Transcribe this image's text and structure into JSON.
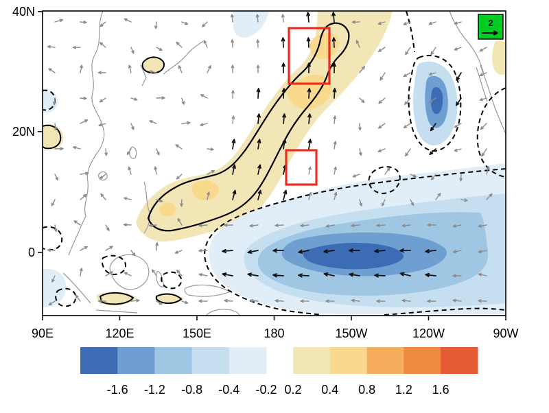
{
  "figure": {
    "y_tick_labels": [
      "40N",
      "20N",
      "0"
    ],
    "x_tick_labels": [
      "90E",
      "120E",
      "150E",
      "180",
      "150W",
      "120W",
      "90W"
    ],
    "reference_vector": {
      "label": "2",
      "box_color": "#00cc22"
    },
    "red_box_color": "#ee2b20"
  },
  "colorbar": {
    "negative_labels": [
      "-1.6",
      "-1.2",
      "-0.8",
      "-0.4",
      "-0.2"
    ],
    "positive_labels": [
      "0.2",
      "0.4",
      "0.8",
      "1.2",
      "1.6"
    ],
    "negative_colors": [
      "#3c6cb4",
      "#6f9fd1",
      "#9fc6e3",
      "#c6dff0",
      "#e1eef8"
    ],
    "positive_colors": [
      "#f3e6b6",
      "#f8d98e",
      "#f4ae5e",
      "#ee8a3f",
      "#e25b33"
    ]
  },
  "chart_data": {
    "type": "heatmap",
    "title": "",
    "x_ticks": [
      "90E",
      "120E",
      "150E",
      "180",
      "150W",
      "120W",
      "90W"
    ],
    "y_ticks": [
      "40N",
      "20N",
      "0"
    ],
    "x_range": "90E eastward across the Pacific to 90W",
    "y_range": "about 12S to 40N",
    "shading_levels": [
      -1.6,
      -1.2,
      -0.8,
      -0.4,
      -0.2,
      0.2,
      0.4,
      0.8,
      1.2,
      1.6
    ],
    "features": [
      {
        "name": "equatorial-cold-tongue",
        "value_range": [
          -1.6,
          -0.2
        ],
        "location": "along the equator from ~170E to 90W, minimum (< -1.6) near 160W-140W",
        "outline": "dashed black contour"
      },
      {
        "name": "subtropical-warm-band",
        "value_range": [
          0.2,
          0.8
        ],
        "location": "diagonal band from ~130E,10N northeastward across the date line to ~35N",
        "outline": "solid black contour"
      },
      {
        "name": "northeast-cold-patch",
        "value_range": [
          -1.2,
          -0.2
        ],
        "location": "near 115W, 20N-33N",
        "outline": "dashed black contour"
      }
    ],
    "vectors": {
      "reference_value": "2",
      "significant_color": "black",
      "nonsignificant_color": "gray",
      "pattern": "westward anomalies along the equatorial cold tongue; southerly cross-band anomalies near the date line pointing toward the warm band"
    },
    "annotations": {
      "red_boxes": [
        {
          "lon": "~175W-160W",
          "lat": "~28N-37N"
        },
        {
          "lon": "~176W-165W",
          "lat": "~11N-17N"
        }
      ]
    }
  }
}
